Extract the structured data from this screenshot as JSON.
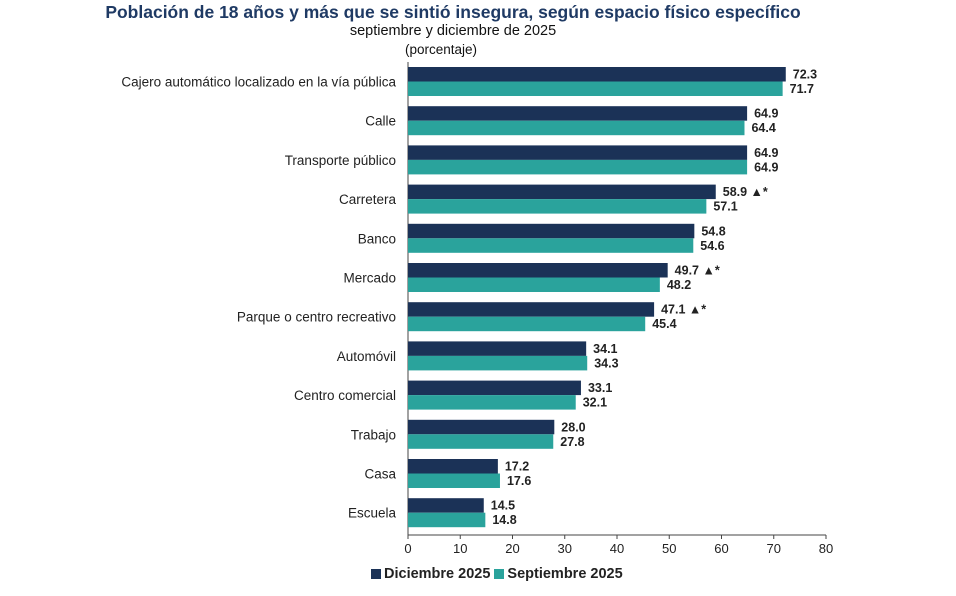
{
  "chart_data": {
    "type": "bar",
    "orientation": "horizontal",
    "title": "Población de 18 años y más que se sintió insegura, según espacio físico específico",
    "subtitle": "septiembre y diciembre de 2025",
    "unit": "(porcentaje)",
    "categories": [
      "Cajero automático localizado en la vía pública",
      "Calle",
      "Transporte público",
      "Carretera",
      "Banco",
      "Mercado",
      "Parque o centro recreativo",
      "Automóvil",
      "Centro comercial",
      "Trabajo",
      "Casa",
      "Escuela"
    ],
    "series": [
      {
        "name": "Diciembre 2025",
        "color": "#1b3257",
        "values": [
          72.3,
          64.9,
          64.9,
          58.9,
          54.8,
          49.7,
          47.1,
          34.1,
          33.1,
          28.0,
          17.2,
          14.5
        ],
        "labels": [
          "72.3",
          "64.9",
          "64.9",
          "58.9 ▲*",
          "54.8",
          "49.7 ▲*",
          "47.1 ▲*",
          "34.1",
          "33.1",
          "28.0",
          "17.2",
          "14.5"
        ]
      },
      {
        "name": "Septiembre 2025",
        "color": "#2aa39c",
        "values": [
          71.7,
          64.4,
          64.9,
          57.1,
          54.6,
          48.2,
          45.4,
          34.3,
          32.1,
          27.8,
          17.6,
          14.8
        ],
        "labels": [
          "71.7",
          "64.4",
          "64.9",
          "57.1",
          "54.6",
          "48.2",
          "45.4",
          "34.3",
          "32.1",
          "27.8",
          "17.6",
          "14.8"
        ]
      }
    ],
    "xlim": [
      0,
      80
    ],
    "xticks": [
      "0",
      "10",
      "20",
      "30",
      "40",
      "50",
      "60",
      "70",
      "80"
    ],
    "grid": false,
    "legend_position": "bottom"
  }
}
